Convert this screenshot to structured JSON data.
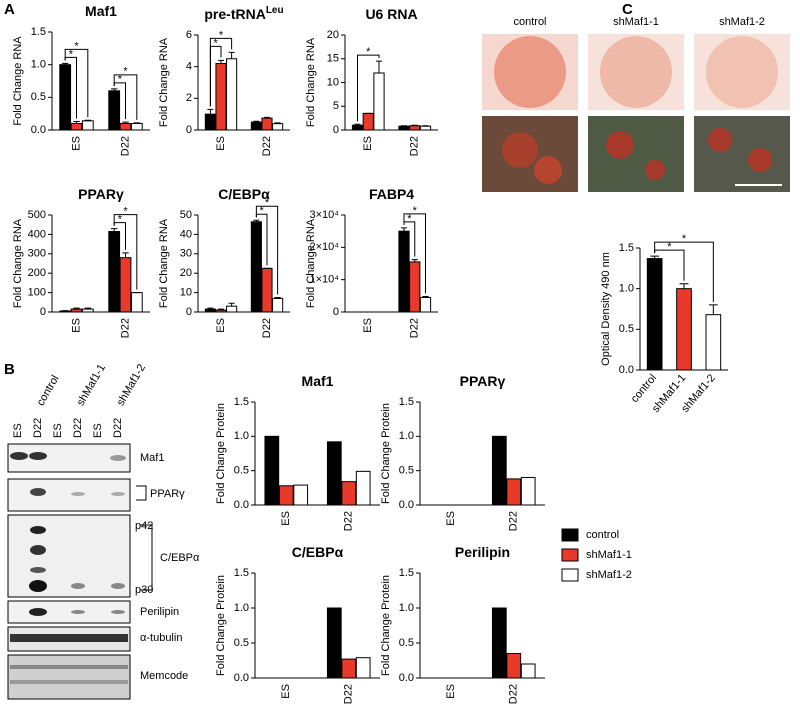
{
  "panels": [
    "A",
    "B",
    "C"
  ],
  "chart_data": [
    {
      "type": "bar",
      "title": "Maf1",
      "ylabel": "Fold Change RNA",
      "categories": [
        "ES",
        "D22"
      ],
      "series": [
        {
          "color": "#000000",
          "values": [
            1.0,
            0.6
          ],
          "errors": [
            0.02,
            0.03
          ]
        },
        {
          "color": "#e8392b",
          "values": [
            0.1,
            0.1
          ],
          "errors": [
            0.03,
            0.02
          ]
        },
        {
          "color": "#ffffff",
          "values": [
            0.14,
            0.1
          ],
          "errors": [
            0.01,
            0.01
          ]
        }
      ],
      "ylim": [
        0,
        1.5
      ],
      "yticks": [
        {
          "value": 0,
          "label": "0.0"
        },
        {
          "value": 0.5,
          "label": "0.5"
        },
        {
          "value": 1,
          "label": "1.0"
        },
        {
          "value": 1.5,
          "label": "1.5"
        }
      ],
      "significance": [
        {
          "group": "ES",
          "label": "*"
        },
        {
          "group": "ES",
          "label": "*"
        },
        {
          "group": "D22",
          "label": "*"
        },
        {
          "group": "D22",
          "label": "*"
        }
      ]
    },
    {
      "type": "bar",
      "title": "pre-tRNA",
      "title_sup": "Leu",
      "ylabel": "Fold Change RNA",
      "categories": [
        "ES",
        "D22"
      ],
      "series": [
        {
          "color": "#000000",
          "values": [
            1.0,
            0.5
          ],
          "errors": [
            0.3,
            0.05
          ]
        },
        {
          "color": "#e8392b",
          "values": [
            4.2,
            0.75
          ],
          "errors": [
            0.2,
            0.05
          ]
        },
        {
          "color": "#ffffff",
          "values": [
            4.5,
            0.4
          ],
          "errors": [
            0.4,
            0.05
          ]
        }
      ],
      "ylim": [
        0,
        6
      ],
      "yticks": [
        0,
        2,
        4,
        6
      ],
      "significance": [
        {
          "group": "ES",
          "label": "*"
        },
        {
          "group": "ES",
          "label": "*"
        }
      ]
    },
    {
      "type": "bar",
      "title": "U6 RNA",
      "ylabel": "Fold Change RNA",
      "categories": [
        "ES",
        "D22"
      ],
      "series": [
        {
          "color": "#000000",
          "values": [
            1.0,
            0.8
          ],
          "errors": [
            0.2,
            0.1
          ]
        },
        {
          "color": "#e8392b",
          "values": [
            3.5,
            0.9
          ],
          "errors": [
            0,
            0.1
          ]
        },
        {
          "color": "#ffffff",
          "values": [
            12,
            0.8
          ],
          "errors": [
            2.5,
            0.1
          ]
        }
      ],
      "ylim": [
        0,
        20
      ],
      "yticks": [
        0,
        5,
        10,
        15,
        20
      ],
      "significance": [
        {
          "group": "ES",
          "label": "*"
        }
      ]
    },
    {
      "type": "bar",
      "title": "PPARγ",
      "ylabel": "Fold Change RNA",
      "categories": [
        "ES",
        "D22"
      ],
      "series": [
        {
          "color": "#000000",
          "values": [
            5,
            415
          ],
          "errors": [
            2,
            15
          ]
        },
        {
          "color": "#e8392b",
          "values": [
            15,
            280
          ],
          "errors": [
            5,
            25
          ]
        },
        {
          "color": "#ffffff",
          "values": [
            15,
            100
          ],
          "errors": [
            5,
            0
          ]
        }
      ],
      "ylim": [
        0,
        500
      ],
      "yticks": [
        0,
        100,
        200,
        300,
        400,
        500
      ],
      "significance": [
        {
          "group": "D22",
          "label": "*"
        },
        {
          "group": "D22",
          "label": "*"
        }
      ]
    },
    {
      "type": "bar",
      "title": "C/EBPα",
      "ylabel": "Fold Change RNA",
      "categories": [
        "ES",
        "D22"
      ],
      "series": [
        {
          "color": "#000000",
          "values": [
            1.5,
            46.5
          ],
          "errors": [
            0.5,
            0.8
          ]
        },
        {
          "color": "#e8392b",
          "values": [
            1,
            22.5
          ],
          "errors": [
            0.5,
            0
          ]
        },
        {
          "color": "#ffffff",
          "values": [
            3,
            7
          ],
          "errors": [
            1.5,
            0.5
          ]
        }
      ],
      "ylim": [
        0,
        50
      ],
      "yticks": [
        0,
        10,
        20,
        30,
        40,
        50
      ],
      "significance": [
        {
          "group": "D22",
          "label": "*"
        },
        {
          "group": "D22",
          "label": "*"
        }
      ]
    },
    {
      "type": "bar",
      "title": "FABP4",
      "ylabel": "Fold Change RNA",
      "categories": [
        "ES",
        "D22"
      ],
      "series": [
        {
          "color": "#000000",
          "values": [
            0,
            25000
          ],
          "errors": [
            0,
            1000
          ]
        },
        {
          "color": "#e8392b",
          "values": [
            0,
            15500
          ],
          "errors": [
            0,
            700
          ]
        },
        {
          "color": "#ffffff",
          "values": [
            0,
            4500
          ],
          "errors": [
            0,
            300
          ]
        }
      ],
      "ylim": [
        0,
        30000
      ],
      "yticks": [
        0,
        {
          "value": 10000,
          "label": "1×10⁴"
        },
        {
          "value": 20000,
          "label": "2×10⁴"
        },
        {
          "value": 30000,
          "label": "3×10⁴"
        }
      ],
      "significance": [
        {
          "group": "D22",
          "label": "*"
        },
        {
          "group": "D22",
          "label": "*"
        }
      ]
    },
    {
      "type": "bar",
      "title": "Maf1",
      "ylabel": "Fold Change Protein",
      "categories": [
        "ES",
        "D22"
      ],
      "series": [
        {
          "name": "control",
          "color": "#000000",
          "values": [
            1.0,
            0.92
          ]
        },
        {
          "name": "shMaf1-1",
          "color": "#e8392b",
          "values": [
            0.28,
            0.34
          ]
        },
        {
          "name": "shMaf1-2",
          "color": "#ffffff",
          "values": [
            0.29,
            0.49
          ]
        }
      ],
      "ylim": [
        0,
        1.5
      ],
      "yticks": [
        {
          "value": 0,
          "label": "0.0"
        },
        {
          "value": 0.5,
          "label": "0.5"
        },
        {
          "value": 1,
          "label": "1.0"
        },
        {
          "value": 1.5,
          "label": "1.5"
        }
      ]
    },
    {
      "type": "bar",
      "title": "PPARγ",
      "ylabel": "Fold Change Protein",
      "categories": [
        "ES",
        "D22"
      ],
      "series": [
        {
          "color": "#000000",
          "values": [
            0,
            1.0
          ]
        },
        {
          "color": "#e8392b",
          "values": [
            0,
            0.38
          ]
        },
        {
          "color": "#ffffff",
          "values": [
            0,
            0.4
          ]
        }
      ],
      "ylim": [
        0,
        1.5
      ],
      "yticks": [
        {
          "value": 0,
          "label": "0.0"
        },
        {
          "value": 0.5,
          "label": "0.5"
        },
        {
          "value": 1,
          "label": "1.0"
        },
        {
          "value": 1.5,
          "label": "1.5"
        }
      ]
    },
    {
      "type": "bar",
      "title": "C/EBPα",
      "ylabel": "Fold Change Protein",
      "categories": [
        "ES",
        "D22"
      ],
      "series": [
        {
          "color": "#000000",
          "values": [
            0,
            1.0
          ]
        },
        {
          "color": "#e8392b",
          "values": [
            0,
            0.27
          ]
        },
        {
          "color": "#ffffff",
          "values": [
            0,
            0.29
          ]
        }
      ],
      "ylim": [
        0,
        1.5
      ],
      "yticks": [
        {
          "value": 0,
          "label": "0.0"
        },
        {
          "value": 0.5,
          "label": "0.5"
        },
        {
          "value": 1,
          "label": "1.0"
        },
        {
          "value": 1.5,
          "label": "1.5"
        }
      ]
    },
    {
      "type": "bar",
      "title": "Perilipin",
      "ylabel": "Fold Change Protein",
      "categories": [
        "ES",
        "D22"
      ],
      "series": [
        {
          "color": "#000000",
          "values": [
            0,
            1.0
          ]
        },
        {
          "color": "#e8392b",
          "values": [
            0,
            0.35
          ]
        },
        {
          "color": "#ffffff",
          "values": [
            0,
            0.2
          ]
        }
      ],
      "ylim": [
        0,
        1.5
      ],
      "yticks": [
        {
          "value": 0,
          "label": "0.0"
        },
        {
          "value": 0.5,
          "label": "0.5"
        },
        {
          "value": 1,
          "label": "1.0"
        },
        {
          "value": 1.5,
          "label": "1.5"
        }
      ]
    },
    {
      "type": "bar",
      "ylabel": "Optical Density 490 nm",
      "categories": [
        "control",
        "shMaf1-1",
        "shMaf1-2"
      ],
      "series": [
        {
          "colors": [
            "#000000",
            "#e8392b",
            "#ffffff"
          ],
          "values": [
            1.37,
            1.0,
            0.68
          ],
          "errors": [
            0.03,
            0.06,
            0.12
          ]
        }
      ],
      "ylim": [
        0,
        1.5
      ],
      "yticks": [
        {
          "value": 0,
          "label": "0.0"
        },
        {
          "value": 0.5,
          "label": "0.5"
        },
        {
          "value": 1,
          "label": "1.0"
        },
        {
          "value": 1.5,
          "label": "1.5"
        }
      ],
      "significance": [
        {
          "label": "*"
        },
        {
          "label": "*"
        }
      ]
    }
  ],
  "blot": {
    "groups": [
      "control",
      "shMaf1-1",
      "shMaf1-2"
    ],
    "lanes": [
      "ES",
      "D22",
      "ES",
      "D22",
      "ES",
      "D22"
    ],
    "rows": [
      "Maf1",
      "PPARγ",
      "C/EBPα",
      "Perilipin",
      "α-tubulin",
      "Memcode"
    ],
    "bands": [
      "p42",
      "p30"
    ]
  },
  "images": {
    "labels": [
      "control",
      "shMaf1-1",
      "shMaf1-2"
    ]
  }
}
